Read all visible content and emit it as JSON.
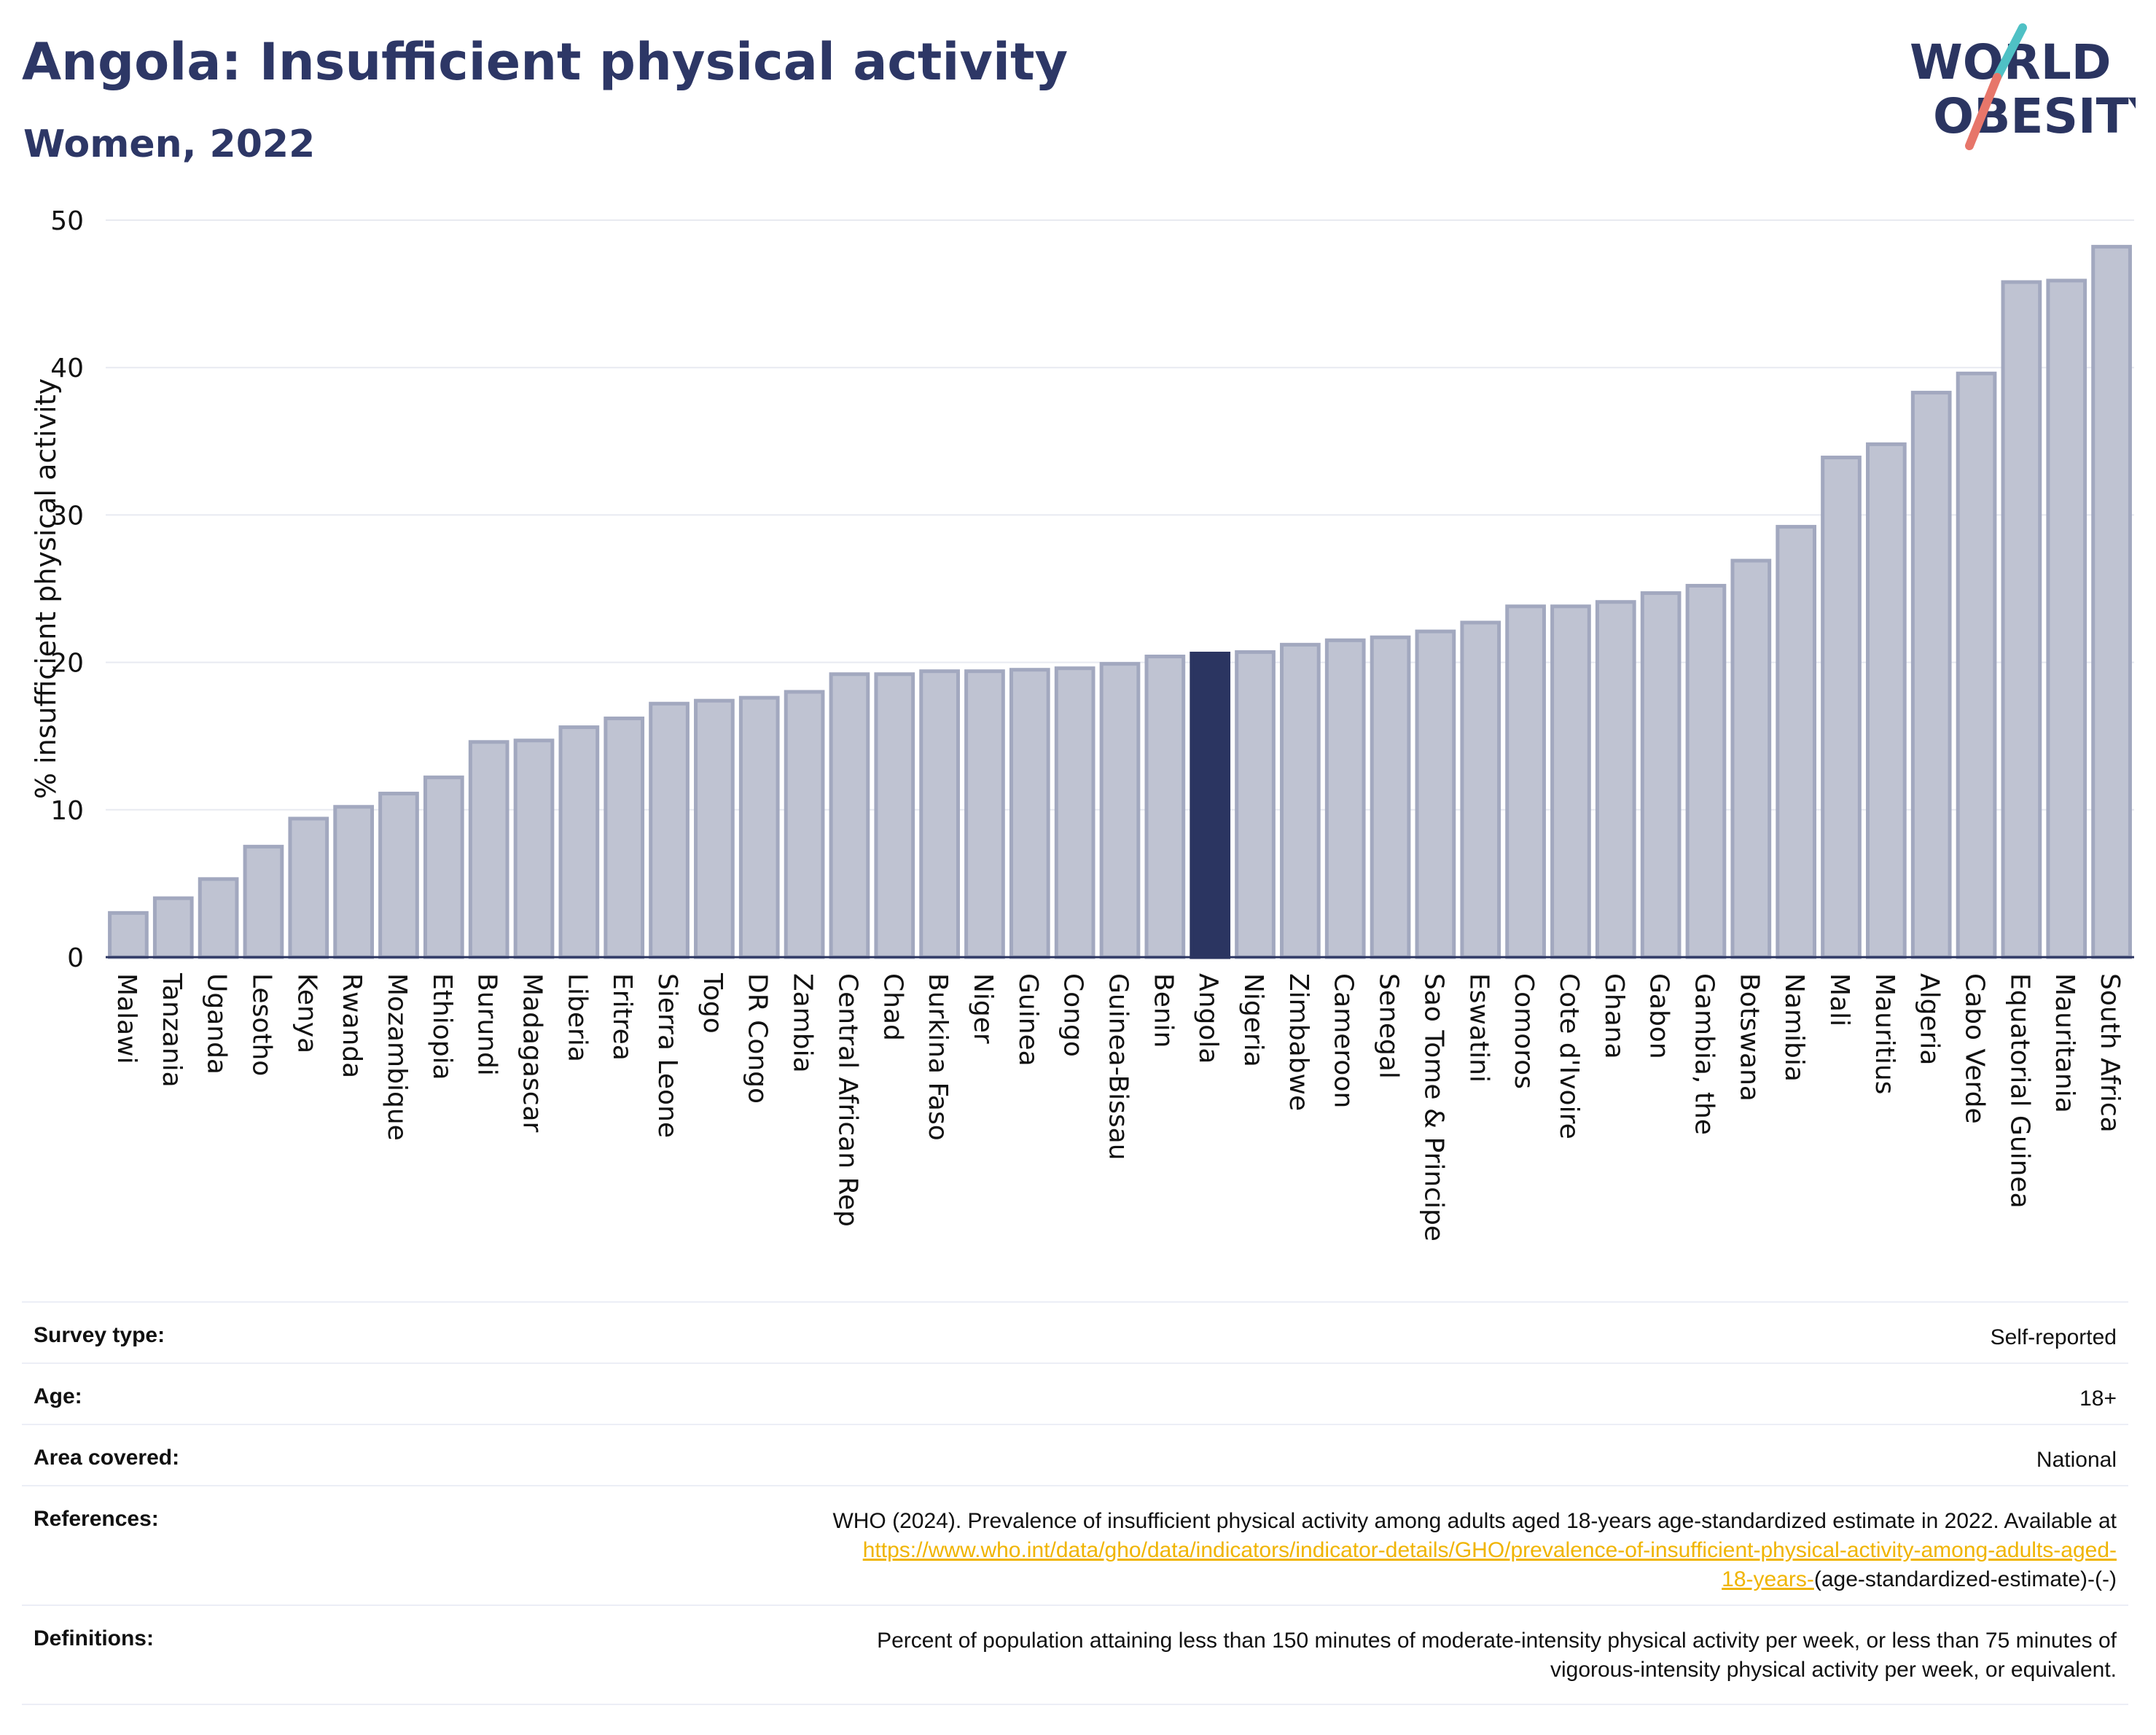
{
  "header": {
    "title": "Angola: Insufficient physical activity",
    "subtitle": "Women, 2022",
    "logo_line1": "WORLD",
    "logo_line2": "OBESITY"
  },
  "colors": {
    "bar": "#bfc3d2",
    "bar_border": "#a2a8bf",
    "highlight": "#2b3561",
    "axis": "#2b3561",
    "grid": "#e8eaf1",
    "logo_teal": "#4fc1c5",
    "logo_coral": "#e7766a",
    "link": "#f0b400"
  },
  "chart_data": {
    "type": "bar",
    "ylabel": "% insufficient physical activity",
    "ylim": [
      0,
      50
    ],
    "yticks": [
      0,
      10,
      20,
      30,
      40,
      50
    ],
    "highlight": "Angola",
    "categories": [
      "Malawi",
      "Tanzania",
      "Uganda",
      "Lesotho",
      "Kenya",
      "Rwanda",
      "Mozambique",
      "Ethiopia",
      "Burundi",
      "Madagascar",
      "Liberia",
      "Eritrea",
      "Sierra Leone",
      "Togo",
      "DR Congo",
      "Zambia",
      "Central African Rep",
      "Chad",
      "Burkina Faso",
      "Niger",
      "Guinea",
      "Congo",
      "Guinea-Bissau",
      "Benin",
      "Angola",
      "Nigeria",
      "Zimbabwe",
      "Cameroon",
      "Senegal",
      "Sao Tome & Principe",
      "Eswatini",
      "Comoros",
      "Cote d'Ivoire",
      "Ghana",
      "Gabon",
      "Gambia, the",
      "Botswana",
      "Namibia",
      "Mali",
      "Mauritius",
      "Algeria",
      "Cabo Verde",
      "Equatorial Guinea",
      "Mauritania",
      "South Africa"
    ],
    "values": [
      3.0,
      4.0,
      5.3,
      7.5,
      9.4,
      10.2,
      11.1,
      12.2,
      14.6,
      14.7,
      15.6,
      16.2,
      17.2,
      17.4,
      17.6,
      18.0,
      19.2,
      19.2,
      19.4,
      19.4,
      19.5,
      19.6,
      19.9,
      20.4,
      20.6,
      20.7,
      21.2,
      21.5,
      21.7,
      22.1,
      22.7,
      23.8,
      23.8,
      24.1,
      24.7,
      25.2,
      26.9,
      29.2,
      33.9,
      34.8,
      38.3,
      39.6,
      45.8,
      45.9,
      48.2
    ]
  },
  "meta": {
    "survey_label": "Survey type:",
    "survey_value": "Self-reported",
    "age_label": "Age:",
    "age_value": "18+",
    "area_label": "Area covered:",
    "area_value": "National",
    "references_label": "References:",
    "references_text": "WHO (2024). Prevalence of insufficient physical activity among adults aged 18-years age-standardized estimate in 2022. Available at",
    "references_link_a": "https://www.who.int/data/gho/data/indicators/indicator-details/GHO/prevalence-of-insufficient-physical-activity-among-adults-aged-",
    "references_link_b": "18-years-",
    "references_suffix": "(age-standardized-estimate)-(-)",
    "definitions_label": "Definitions:",
    "definitions_line1": "Percent of population attaining less than 150 minutes of moderate-intensity physical activity per week, or less than 75 minutes of",
    "definitions_line2": "vigorous-intensity physical activity per week, or equivalent."
  }
}
